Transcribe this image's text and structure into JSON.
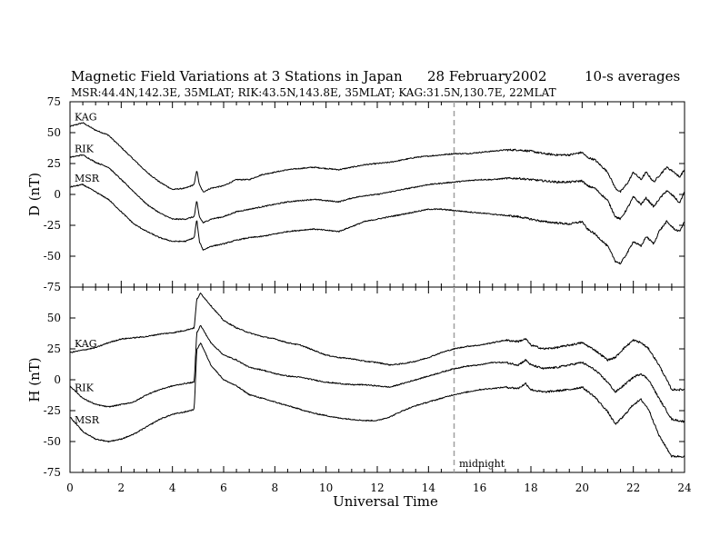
{
  "header": {
    "title": "Magnetic Field Variations at 3 Stations in Japan",
    "date": "28 February2002",
    "averaging": "10-s averages",
    "stations_line": "MSR:44.4N,142.3E, 35MLAT;  RIK:43.5N,143.8E, 35MLAT;  KAG:31.5N,130.7E, 22MLAT"
  },
  "chart_data": [
    {
      "type": "line",
      "panel": "top",
      "ylabel": "D (nT)",
      "ylim": [
        -75,
        75
      ],
      "yticks": [
        75,
        50,
        25,
        0,
        -25,
        -50,
        -75
      ],
      "xlim": [
        0,
        24
      ],
      "series": [
        {
          "name": "KAG",
          "x": [
            0,
            0.5,
            1,
            1.5,
            2,
            2.5,
            3,
            3.5,
            4,
            4.5,
            4.85,
            4.95,
            5.05,
            5.2,
            5.5,
            6,
            6.5,
            7,
            7.5,
            8,
            8.5,
            9,
            9.5,
            10,
            10.5,
            11,
            11.5,
            12,
            12.5,
            13,
            13.5,
            14,
            14.5,
            15,
            15.5,
            16,
            16.5,
            17,
            17.5,
            18,
            18.5,
            19,
            19.5,
            20,
            20.2,
            20.5,
            21,
            21.3,
            21.5,
            21.8,
            22,
            22.3,
            22.5,
            22.8,
            23,
            23.3,
            23.6,
            23.8,
            24
          ],
          "y": [
            55,
            58,
            52,
            48,
            38,
            28,
            18,
            10,
            4,
            5,
            8,
            20,
            8,
            2,
            5,
            7,
            12,
            12,
            16,
            18,
            20,
            21,
            22,
            21,
            20,
            22,
            24,
            25,
            26,
            28,
            30,
            31,
            32,
            33,
            33,
            34,
            35,
            36,
            36,
            35,
            33,
            32,
            32,
            34,
            30,
            28,
            18,
            5,
            2,
            10,
            18,
            12,
            18,
            10,
            15,
            22,
            18,
            14,
            20
          ]
        },
        {
          "name": "RIK",
          "x": [
            0,
            0.5,
            1,
            1.5,
            2,
            2.5,
            3,
            3.5,
            4,
            4.5,
            4.85,
            4.95,
            5.05,
            5.2,
            5.5,
            6,
            6.5,
            7,
            7.5,
            8,
            8.5,
            9,
            9.5,
            10,
            10.5,
            11,
            11.5,
            12,
            12.5,
            13,
            13.5,
            14,
            14.5,
            15,
            15.5,
            16,
            16.5,
            17,
            17.5,
            18,
            18.5,
            19,
            19.5,
            20,
            20.2,
            20.5,
            21,
            21.3,
            21.5,
            21.8,
            22,
            22.3,
            22.5,
            22.8,
            23,
            23.3,
            23.6,
            23.8,
            24
          ],
          "y": [
            30,
            32,
            26,
            22,
            12,
            2,
            -8,
            -15,
            -20,
            -20,
            -18,
            -5,
            -18,
            -23,
            -20,
            -18,
            -14,
            -12,
            -10,
            -8,
            -6,
            -5,
            -4,
            -5,
            -6,
            -3,
            -1,
            0,
            2,
            4,
            6,
            8,
            9,
            10,
            11,
            12,
            12,
            13,
            13,
            12,
            11,
            10,
            10,
            11,
            7,
            5,
            -5,
            -18,
            -20,
            -10,
            -2,
            -8,
            -3,
            -10,
            -4,
            3,
            -2,
            -7,
            2
          ]
        },
        {
          "name": "MSR",
          "x": [
            0,
            0.5,
            1,
            1.5,
            2,
            2.5,
            3,
            3.5,
            4,
            4.5,
            4.85,
            4.95,
            5.05,
            5.2,
            5.5,
            6,
            6.5,
            7,
            7.5,
            8,
            8.5,
            9,
            9.5,
            10,
            10.5,
            11,
            11.5,
            12,
            12.5,
            13,
            13.5,
            14,
            14.5,
            15,
            15.5,
            16,
            16.5,
            17,
            17.5,
            18,
            18.5,
            19,
            19.5,
            20,
            20.2,
            20.5,
            21,
            21.3,
            21.5,
            21.8,
            22,
            22.3,
            22.5,
            22.8,
            23,
            23.3,
            23.6,
            23.8,
            24
          ],
          "y": [
            6,
            8,
            2,
            -4,
            -14,
            -24,
            -30,
            -35,
            -38,
            -38,
            -35,
            -20,
            -38,
            -45,
            -42,
            -40,
            -37,
            -35,
            -34,
            -32,
            -30,
            -29,
            -28,
            -29,
            -30,
            -26,
            -22,
            -20,
            -18,
            -16,
            -14,
            -12,
            -12,
            -13,
            -14,
            -15,
            -16,
            -17,
            -18,
            -20,
            -22,
            -23,
            -24,
            -22,
            -28,
            -32,
            -42,
            -54,
            -56,
            -46,
            -38,
            -42,
            -34,
            -40,
            -30,
            -22,
            -28,
            -30,
            -22
          ]
        }
      ]
    },
    {
      "type": "line",
      "panel": "bottom",
      "ylabel": "H (nT)",
      "xlabel": "Universal Time",
      "ylim": [
        -75,
        75
      ],
      "yticks": [
        50,
        25,
        0,
        -25,
        -50,
        -75
      ],
      "xlim": [
        0,
        24
      ],
      "xticks": [
        0,
        2,
        4,
        6,
        8,
        10,
        12,
        14,
        16,
        18,
        20,
        22,
        24
      ],
      "series": [
        {
          "name": "KAG",
          "x": [
            0,
            0.5,
            1,
            1.5,
            2,
            2.5,
            3,
            3.5,
            4,
            4.5,
            4.85,
            4.95,
            5.1,
            5.5,
            6,
            6.5,
            7,
            7.5,
            8,
            8.5,
            9,
            9.5,
            10,
            10.5,
            11,
            11.5,
            12,
            12.5,
            13,
            13.5,
            14,
            14.5,
            15,
            15.5,
            16,
            16.5,
            17,
            17.5,
            17.8,
            18,
            18.5,
            19,
            19.5,
            20,
            20.5,
            21,
            21.3,
            21.6,
            22,
            22.3,
            22.6,
            23,
            23.5,
            24
          ],
          "y": [
            22,
            24,
            26,
            30,
            33,
            34,
            35,
            37,
            38,
            40,
            42,
            65,
            70,
            60,
            48,
            42,
            38,
            35,
            33,
            30,
            28,
            24,
            20,
            18,
            17,
            15,
            14,
            12,
            13,
            15,
            18,
            22,
            25,
            27,
            28,
            30,
            32,
            31,
            33,
            28,
            25,
            26,
            28,
            30,
            24,
            16,
            18,
            25,
            32,
            30,
            25,
            12,
            -8,
            -8
          ]
        },
        {
          "name": "RIK",
          "x": [
            0,
            0.5,
            1,
            1.5,
            2,
            2.5,
            3,
            3.5,
            4,
            4.5,
            4.85,
            4.95,
            5.1,
            5.5,
            6,
            6.5,
            7,
            7.5,
            8,
            8.5,
            9,
            9.5,
            10,
            10.5,
            11,
            11.5,
            12,
            12.5,
            13,
            13.5,
            14,
            14.5,
            15,
            15.5,
            16,
            16.5,
            17,
            17.5,
            17.8,
            18,
            18.5,
            19,
            19.5,
            20,
            20.5,
            21,
            21.3,
            21.6,
            22,
            22.3,
            22.6,
            23,
            23.5,
            24
          ],
          "y": [
            -5,
            -15,
            -20,
            -22,
            -20,
            -18,
            -12,
            -8,
            -5,
            -3,
            -2,
            38,
            44,
            30,
            20,
            16,
            10,
            8,
            5,
            3,
            2,
            0,
            -2,
            -3,
            -4,
            -4,
            -5,
            -6,
            -3,
            0,
            3,
            6,
            9,
            11,
            12,
            14,
            14,
            12,
            16,
            12,
            9,
            10,
            12,
            14,
            8,
            -2,
            -10,
            -5,
            2,
            5,
            0,
            -15,
            -32,
            -34
          ]
        },
        {
          "name": "MSR",
          "x": [
            0,
            0.5,
            1,
            1.5,
            2,
            2.5,
            3,
            3.5,
            4,
            4.5,
            4.85,
            4.95,
            5.1,
            5.5,
            6,
            6.5,
            7,
            7.5,
            8,
            8.5,
            9,
            9.5,
            10,
            10.5,
            11,
            11.5,
            12,
            12.5,
            13,
            13.5,
            14,
            14.5,
            15,
            15.5,
            16,
            16.5,
            17,
            17.5,
            17.8,
            18,
            18.5,
            19,
            19.5,
            20,
            20.5,
            21,
            21.3,
            21.6,
            22,
            22.3,
            22.6,
            23,
            23.5,
            24
          ],
          "y": [
            -30,
            -42,
            -48,
            -50,
            -48,
            -44,
            -38,
            -32,
            -28,
            -26,
            -24,
            24,
            30,
            12,
            0,
            -5,
            -12,
            -15,
            -18,
            -21,
            -24,
            -27,
            -29,
            -31,
            -32,
            -33,
            -33,
            -30,
            -25,
            -21,
            -18,
            -15,
            -12,
            -10,
            -8,
            -7,
            -6,
            -7,
            -3,
            -8,
            -10,
            -9,
            -8,
            -6,
            -14,
            -26,
            -36,
            -30,
            -20,
            -16,
            -24,
            -45,
            -62,
            -62
          ]
        }
      ]
    }
  ],
  "midnight_label": "midnight",
  "midnight_ut": 15,
  "colors": {
    "line": "#000000",
    "midnight_line": "#a0a0a0"
  }
}
